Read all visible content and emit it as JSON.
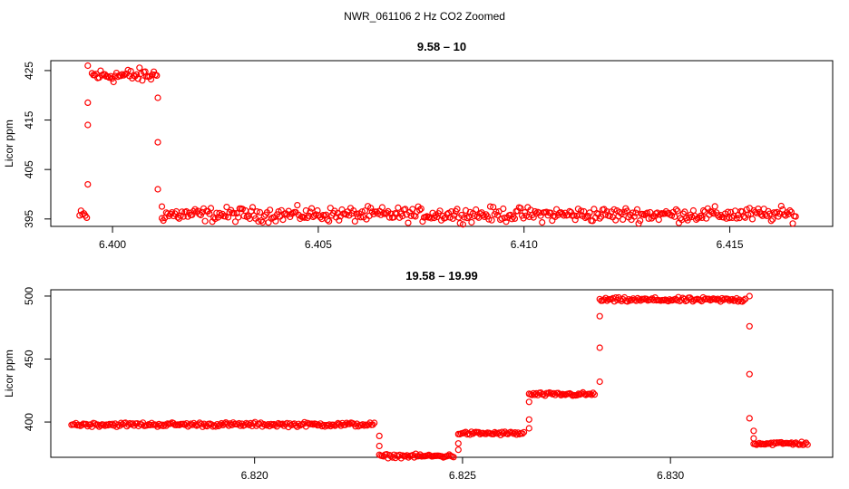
{
  "figure": {
    "main_title": "NWR_061106  2 Hz CO2 Zoomed",
    "point_color": "#ff0000"
  },
  "chart_data": [
    {
      "type": "scatter",
      "title": "9.58 – 10",
      "xlabel": "",
      "ylabel": "Licor ppm",
      "xlim": [
        6.3985,
        6.4175
      ],
      "ylim": [
        393.5,
        427
      ],
      "x_ticks": [
        6.4,
        6.405,
        6.41,
        6.415
      ],
      "x_tick_labels": [
        "6.400",
        "6.405",
        "6.410",
        "6.415"
      ],
      "y_ticks": [
        395,
        405,
        415,
        425
      ],
      "y_tick_labels": [
        "395",
        "405",
        "415",
        "425"
      ],
      "grid": false,
      "legend": "none",
      "segments": [
        {
          "x": [
            6.3992,
            6.3994
          ],
          "y": 395.6,
          "noise": 0.9
        },
        {
          "x": [
            6.3995,
            6.4011
          ],
          "y": 424.0,
          "noise": 1.0
        },
        {
          "x": [
            6.4012,
            6.4166
          ],
          "y": 395.9,
          "noise": 1.0
        }
      ],
      "transition_points": [
        {
          "x": 6.3994,
          "y": 402.0
        },
        {
          "x": 6.3994,
          "y": 414.0
        },
        {
          "x": 6.3994,
          "y": 418.5
        },
        {
          "x": 6.3994,
          "y": 426.0
        },
        {
          "x": 6.4011,
          "y": 419.5
        },
        {
          "x": 6.4011,
          "y": 410.5
        },
        {
          "x": 6.4011,
          "y": 401.0
        },
        {
          "x": 6.4012,
          "y": 397.5
        }
      ]
    },
    {
      "type": "scatter",
      "title": "19.58 – 19.99",
      "xlabel": "",
      "ylabel": "Licor ppm",
      "xlim": [
        6.8151,
        6.8339
      ],
      "ylim": [
        372,
        505
      ],
      "x_ticks": [
        6.82,
        6.825,
        6.83
      ],
      "x_tick_labels": [
        "6.820",
        "6.825",
        "6.830"
      ],
      "y_ticks": [
        400,
        450,
        500
      ],
      "y_tick_labels": [
        "400",
        "450",
        "500"
      ],
      "grid": false,
      "legend": "none",
      "segments": [
        {
          "x": [
            6.8156,
            6.8229
          ],
          "y": 398.0,
          "noise": 1.2
        },
        {
          "x": [
            6.823,
            6.8248
          ],
          "y": 373.0,
          "noise": 1.0
        },
        {
          "x": [
            6.8249,
            6.8265
          ],
          "y": 391.0,
          "noise": 1.0
        },
        {
          "x": [
            6.8266,
            6.8282
          ],
          "y": 422.0,
          "noise": 1.0
        },
        {
          "x": [
            6.8283,
            6.8318
          ],
          "y": 497.0,
          "noise": 1.2
        },
        {
          "x": [
            6.832,
            6.8333
          ],
          "y": 383.0,
          "noise": 1.0
        }
      ],
      "transition_points": [
        {
          "x": 6.823,
          "y": 389.0
        },
        {
          "x": 6.823,
          "y": 381.0
        },
        {
          "x": 6.8249,
          "y": 378.0
        },
        {
          "x": 6.8249,
          "y": 383.0
        },
        {
          "x": 6.8266,
          "y": 395.0
        },
        {
          "x": 6.8266,
          "y": 402.0
        },
        {
          "x": 6.8266,
          "y": 416.0
        },
        {
          "x": 6.8283,
          "y": 432.0
        },
        {
          "x": 6.8283,
          "y": 459.0
        },
        {
          "x": 6.8283,
          "y": 484.0
        },
        {
          "x": 6.8319,
          "y": 500.0
        },
        {
          "x": 6.8319,
          "y": 476.0
        },
        {
          "x": 6.8319,
          "y": 438.0
        },
        {
          "x": 6.8319,
          "y": 403.0
        },
        {
          "x": 6.832,
          "y": 393.0
        },
        {
          "x": 6.832,
          "y": 387.0
        }
      ]
    }
  ]
}
